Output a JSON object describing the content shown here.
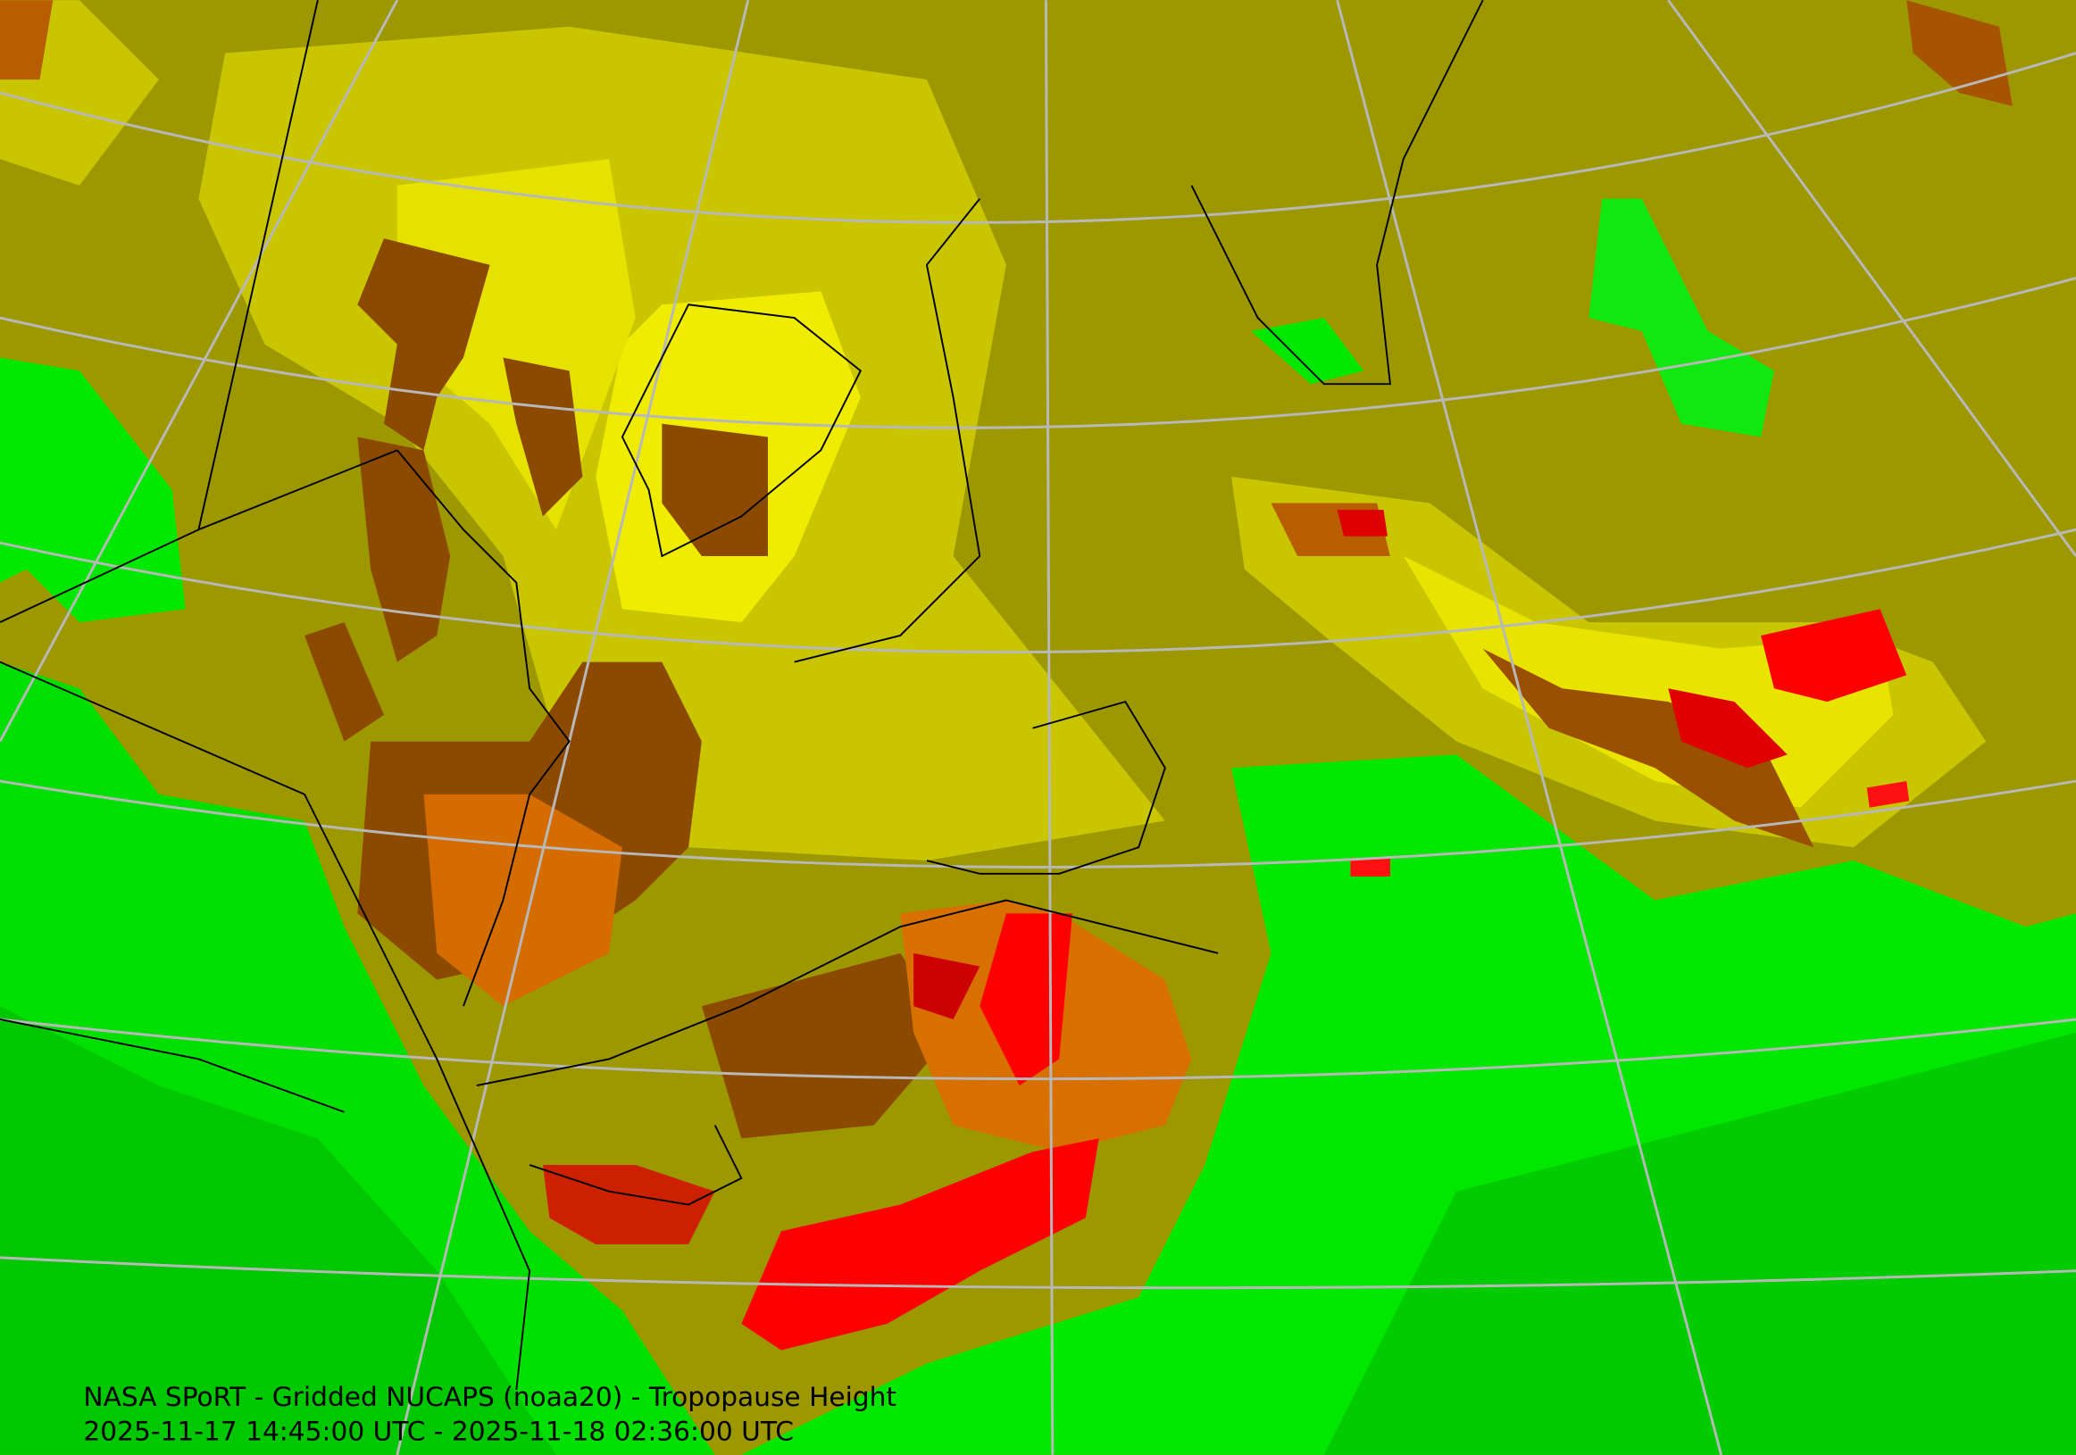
{
  "caption": {
    "title": "NASA SPoRT - Gridded NUCAPS (noaa20) - Tropopause Height",
    "time_range": "2025-11-17 14:45:00 UTC - 2025-11-18 02:36:00 UTC"
  }
}
